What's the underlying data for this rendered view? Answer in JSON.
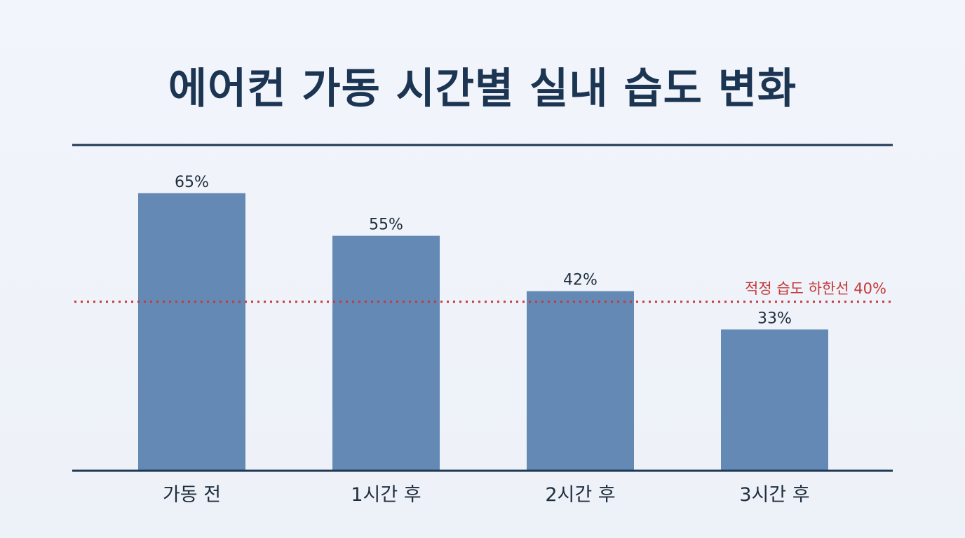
{
  "chart_data": {
    "type": "bar",
    "title": "에어컨 가동 시간별 실내 습도 변화",
    "categories": [
      "가동 전",
      "1시간 후",
      "2시간 후",
      "3시간 후"
    ],
    "values": [
      65,
      55,
      42,
      33
    ],
    "value_labels": [
      "65%",
      "55%",
      "42%",
      "33%"
    ],
    "unit": "%",
    "ylim": [
      0,
      75
    ],
    "grid": false,
    "bar_color": "#6489b4",
    "reference_line": {
      "value": 40,
      "label": "적정 습도 하한선 40%",
      "color": "#c5393a",
      "style": "dotted"
    }
  }
}
